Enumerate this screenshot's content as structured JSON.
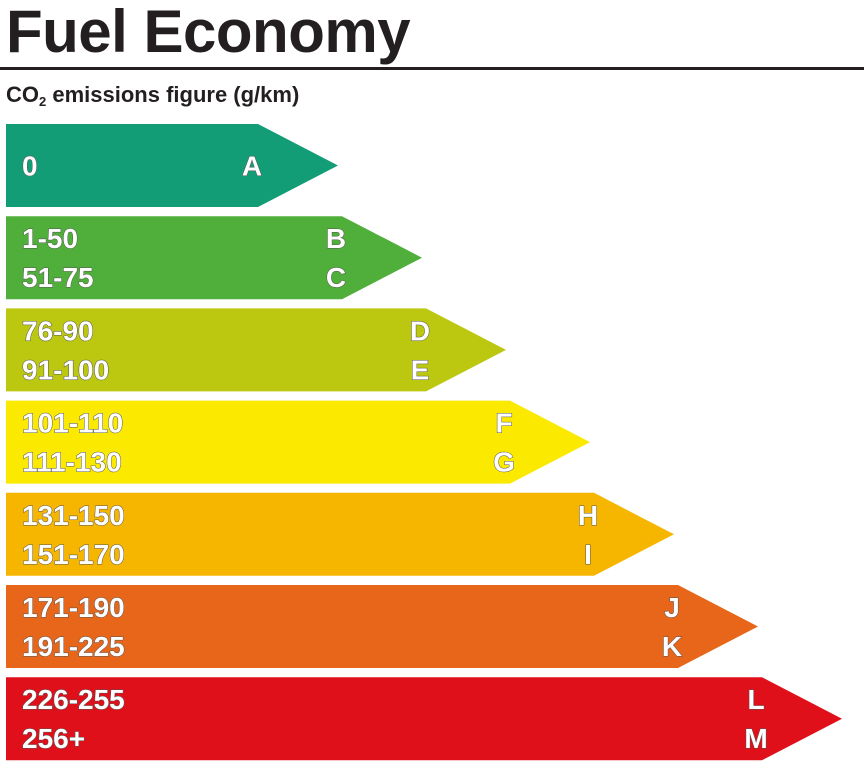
{
  "title": "Fuel Economy",
  "subtitle": {
    "prefix": "CO",
    "subscript": "2",
    "suffix": " emissions figure (g/km)"
  },
  "bands": [
    {
      "ranges": [
        "0"
      ],
      "letters": [
        "A"
      ],
      "color": "#139d77"
    },
    {
      "ranges": [
        "1-50",
        "51-75"
      ],
      "letters": [
        "B",
        "C"
      ],
      "color": "#50af3a"
    },
    {
      "ranges": [
        "76-90",
        "91-100"
      ],
      "letters": [
        "D",
        "E"
      ],
      "color": "#bcc70f"
    },
    {
      "ranges": [
        "101-110",
        "111-130"
      ],
      "letters": [
        "F",
        "G"
      ],
      "color": "#fbe900"
    },
    {
      "ranges": [
        "131-150",
        "151-170"
      ],
      "letters": [
        "H",
        "I"
      ],
      "color": "#f6b600"
    },
    {
      "ranges": [
        "171-190",
        "191-225"
      ],
      "letters": [
        "J",
        "K"
      ],
      "color": "#e8661a"
    },
    {
      "ranges": [
        "226-255",
        "256+"
      ],
      "letters": [
        "L",
        "M"
      ],
      "color": "#e0101b"
    }
  ]
}
